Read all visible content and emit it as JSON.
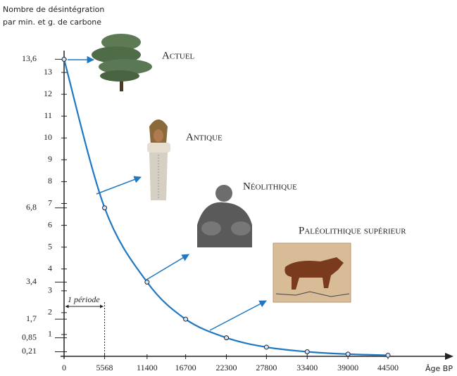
{
  "chart_data": {
    "type": "line",
    "ylabel": [
      "Nombre de désintégration",
      "par min. et g. de carbone"
    ],
    "xlabel": "Âge BP",
    "x": [
      0,
      5568,
      11400,
      16700,
      22300,
      27800,
      33400,
      39000,
      44500
    ],
    "values": [
      13.6,
      6.8,
      3.4,
      1.7,
      0.85,
      0.42,
      0.21,
      0.1,
      0.05
    ],
    "color": "#1f78c1",
    "xlim": [
      0,
      44500
    ],
    "ylim": [
      0,
      14
    ],
    "xticks": [
      0,
      5568,
      11400,
      16700,
      22300,
      27800,
      33400,
      39000,
      44500
    ],
    "yticks": [
      1,
      2,
      3,
      4,
      5,
      6,
      7,
      8,
      9,
      10,
      11,
      12,
      13
    ],
    "yticks_major": [
      {
        "value": 13.6,
        "label": "13,6"
      },
      {
        "value": 6.8,
        "label": "6,8"
      },
      {
        "value": 3.4,
        "label": "3,4"
      },
      {
        "value": 1.7,
        "label": "1,7"
      },
      {
        "value": 0.85,
        "label": "0,85"
      },
      {
        "value": 0.21,
        "label": "0,21"
      }
    ],
    "period_label": "1 période",
    "annotations": [
      "Actuel",
      "Antique",
      "Néolithique",
      "Paléolithique supérieur"
    ]
  }
}
